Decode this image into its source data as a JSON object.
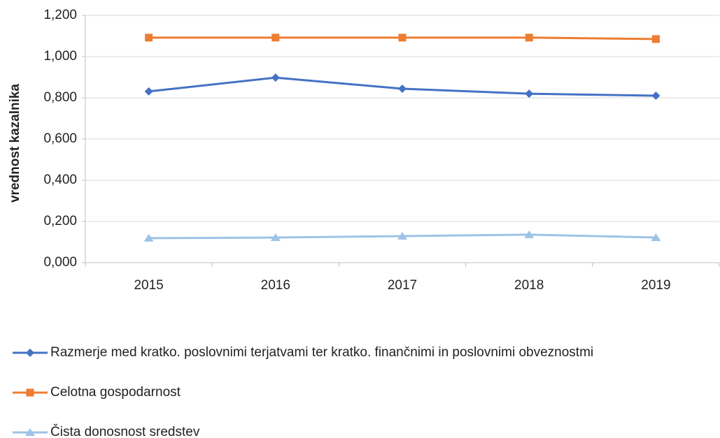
{
  "chart_data": {
    "type": "line",
    "y_label": "vrednost kazalnika",
    "categories": [
      "2015",
      "2016",
      "2017",
      "2018",
      "2019"
    ],
    "series": [
      {
        "name": "Razmerje med kratko. poslovnimi terjatvami ter kratko. finančnimi in poslovnimi obveznostmi",
        "color": "#4472c4",
        "marker": "diamond",
        "values": [
          0.831,
          0.898,
          0.844,
          0.82,
          0.81
        ]
      },
      {
        "name": "Celotna gospodarnost",
        "color": "#ed7d31",
        "marker": "square",
        "values": [
          1.092,
          1.092,
          1.092,
          1.092,
          1.085
        ]
      },
      {
        "name": "Čista donosnost sredstev",
        "color": "#9dc3e6",
        "marker": "triangle",
        "values": [
          0.119,
          0.122,
          0.129,
          0.136,
          0.122
        ]
      }
    ],
    "ylim": [
      0,
      1.2
    ],
    "yticks": [
      {
        "value": 0,
        "label": "0,000"
      },
      {
        "value": 0.2,
        "label": "0,200"
      },
      {
        "value": 0.4,
        "label": "0,400"
      },
      {
        "value": 0.6,
        "label": "0,600"
      },
      {
        "value": 0.8,
        "label": "0,800"
      },
      {
        "value": 1.0,
        "label": "1,000"
      },
      {
        "value": 1.2,
        "label": "1,200"
      }
    ],
    "grid": true,
    "legend": "bottom"
  }
}
